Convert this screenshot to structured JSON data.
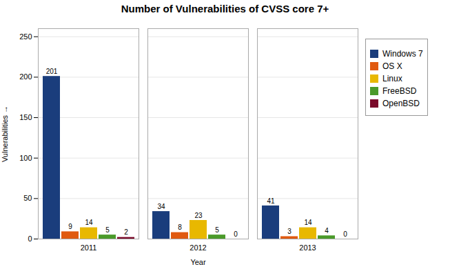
{
  "chart_data": {
    "type": "bar",
    "title": "Number of Vulnerabilities of CVSS core 7+",
    "xlabel": "Year",
    "ylabel": "Vulnerabilities",
    "categories": [
      "2011",
      "2012",
      "2013"
    ],
    "series": [
      {
        "name": "Windows 7",
        "color": "#1a3d7c",
        "values": [
          201,
          34,
          41
        ]
      },
      {
        "name": "OS X",
        "color": "#e05a10",
        "values": [
          9,
          8,
          3
        ]
      },
      {
        "name": "Linux",
        "color": "#e8b800",
        "values": [
          14,
          23,
          14
        ]
      },
      {
        "name": "FreeBSD",
        "color": "#4a9a2a",
        "values": [
          5,
          5,
          4
        ]
      },
      {
        "name": "OpenBSD",
        "color": "#7a0a2a",
        "values": [
          2,
          0,
          0
        ]
      }
    ],
    "ylim": [
      0,
      260
    ],
    "yticks": [
      0,
      50,
      100,
      150,
      200,
      250
    ],
    "grid": true,
    "data_labels": true,
    "legend": "right"
  }
}
